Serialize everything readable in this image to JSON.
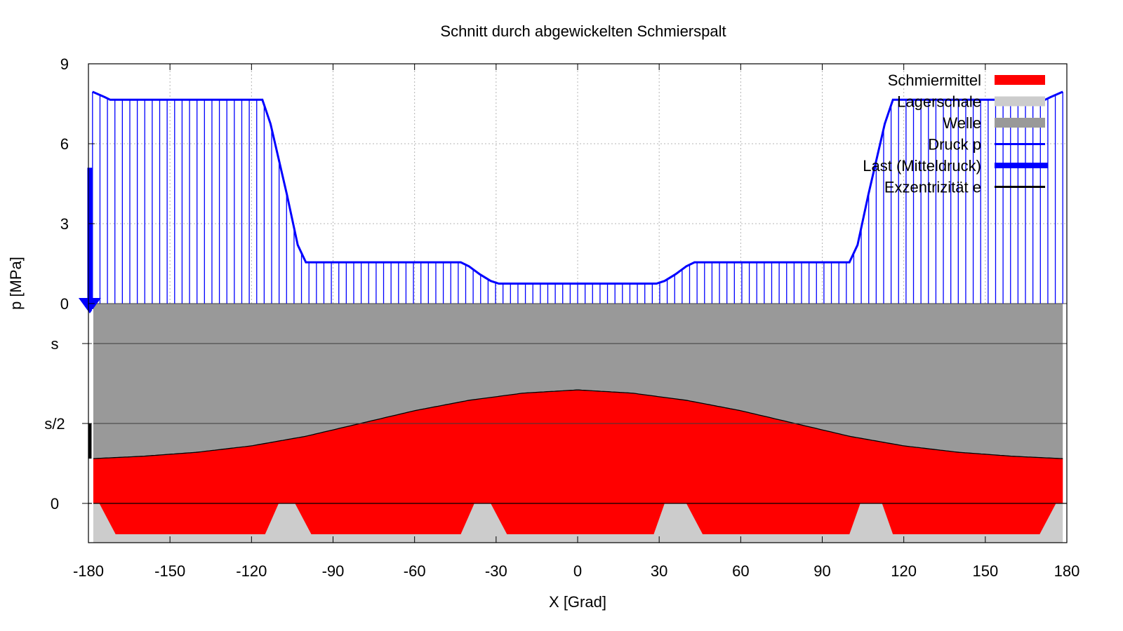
{
  "chart_data": {
    "type": "area",
    "title": "Schnitt durch abgewickelten Schmierspalt",
    "xlabel": "X [Grad]",
    "ylabel": "p [MPa]",
    "xlim": [
      -180,
      180
    ],
    "x_ticks": [
      -180,
      -150,
      -120,
      -90,
      -60,
      -30,
      0,
      30,
      60,
      90,
      120,
      150,
      180
    ],
    "pressure_axis": {
      "ylim": [
        0,
        9
      ],
      "ticks": [
        "0",
        "3",
        "6",
        "9"
      ],
      "tick_values": [
        0,
        3,
        6,
        9
      ]
    },
    "gap_axis": {
      "ticks": [
        "0",
        "s/2",
        "s"
      ],
      "tick_values": [
        0,
        0.5,
        1
      ]
    },
    "grid": true,
    "legend_position": "top-right",
    "legend": [
      {
        "label": "Schmiermittel",
        "color": "#ff0000",
        "style": "fill"
      },
      {
        "label": "Lagerschale",
        "color": "#cccccc",
        "style": "fill"
      },
      {
        "label": "Welle",
        "color": "#999999",
        "style": "fill"
      },
      {
        "label": "Druck p",
        "color": "#0000ff",
        "style": "line"
      },
      {
        "label": "Last (Mitteldruck)",
        "color": "#0000ff",
        "style": "thick-line"
      },
      {
        "label": "Exzentrizität e",
        "color": "#000000",
        "style": "line"
      }
    ],
    "series": [
      {
        "name": "Druck p",
        "unit": "MPa",
        "x": [
          -178.5,
          -174,
          -172,
          -116,
          -113,
          -107,
          -103,
          -100,
          -43,
          -40,
          -36,
          -32,
          -29,
          29,
          32,
          36,
          40,
          43,
          100,
          103,
          107,
          113,
          116,
          172,
          174,
          178.5
        ],
        "y": [
          7.95,
          7.75,
          7.65,
          7.65,
          6.75,
          4.1,
          2.2,
          1.55,
          1.55,
          1.4,
          1.1,
          0.85,
          0.75,
          0.75,
          0.85,
          1.1,
          1.4,
          1.55,
          1.55,
          2.2,
          4.1,
          6.75,
          7.65,
          7.65,
          7.75,
          7.95
        ]
      },
      {
        "name": "Schmiermittel",
        "unit": "s",
        "x": [
          -178.5,
          -160,
          -140,
          -120,
          -100,
          -80,
          -60,
          -40,
          -20,
          0,
          20,
          40,
          60,
          80,
          100,
          120,
          140,
          160,
          178.5
        ],
        "y": [
          0.28,
          0.295,
          0.32,
          0.36,
          0.42,
          0.5,
          0.58,
          0.645,
          0.69,
          0.71,
          0.69,
          0.645,
          0.58,
          0.5,
          0.42,
          0.36,
          0.32,
          0.295,
          0.28
        ]
      },
      {
        "name": "Last (Mitteldruck)",
        "unit": "MPa",
        "x": [
          -179.5
        ],
        "y": [
          5.1
        ]
      },
      {
        "name": "Exzentrizität e",
        "x": [
          -179.5,
          -179.5
        ],
        "y": [
          0.28,
          0.5
        ]
      }
    ],
    "pockets_x": [
      [
        -176,
        -170,
        -115,
        -110
      ],
      [
        -104,
        -98,
        -43,
        -38
      ],
      [
        -32,
        -26,
        28,
        32
      ],
      [
        40,
        46,
        100,
        104
      ],
      [
        112,
        116,
        170,
        176
      ]
    ]
  }
}
